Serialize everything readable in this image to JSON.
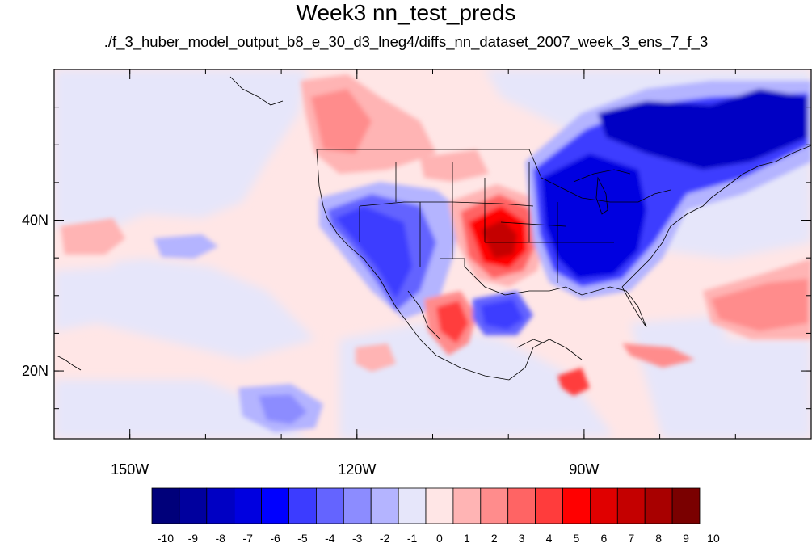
{
  "title": "Week3 nn_test_preds",
  "subtitle": "./f_3_huber_model_output_b8_e_30_d3_lneg4/diffs_nn_dataset_2007_week_3_ens_7_f_3",
  "map": {
    "lon_range": [
      -160,
      -60
    ],
    "lat_range": [
      11,
      60
    ],
    "lon_ticks": [
      {
        "value": -150,
        "label": "150W"
      },
      {
        "value": -120,
        "label": "120W"
      },
      {
        "value": -90,
        "label": "90W"
      }
    ],
    "lat_ticks": [
      {
        "value": 40,
        "label": "40N"
      },
      {
        "value": 20,
        "label": "20N"
      }
    ]
  },
  "colorbar": {
    "colors": [
      "#00007a",
      "#00009e",
      "#0000c4",
      "#0000e0",
      "#0000ff",
      "#3c3cff",
      "#6464ff",
      "#8c8cff",
      "#b4b4ff",
      "#e6e6fa",
      "#ffe6e6",
      "#ffb4b4",
      "#ff8c8c",
      "#ff6464",
      "#ff3c3c",
      "#ff0000",
      "#e00000",
      "#c40000",
      "#a80000",
      "#7a0000"
    ],
    "labels": [
      "-10",
      "-9",
      "-8",
      "-7",
      "-6",
      "-5",
      "-4",
      "-3",
      "-2",
      "-1",
      "0",
      "1",
      "2",
      "3",
      "4",
      "5",
      "6",
      "7",
      "8",
      "9",
      "10"
    ]
  }
}
